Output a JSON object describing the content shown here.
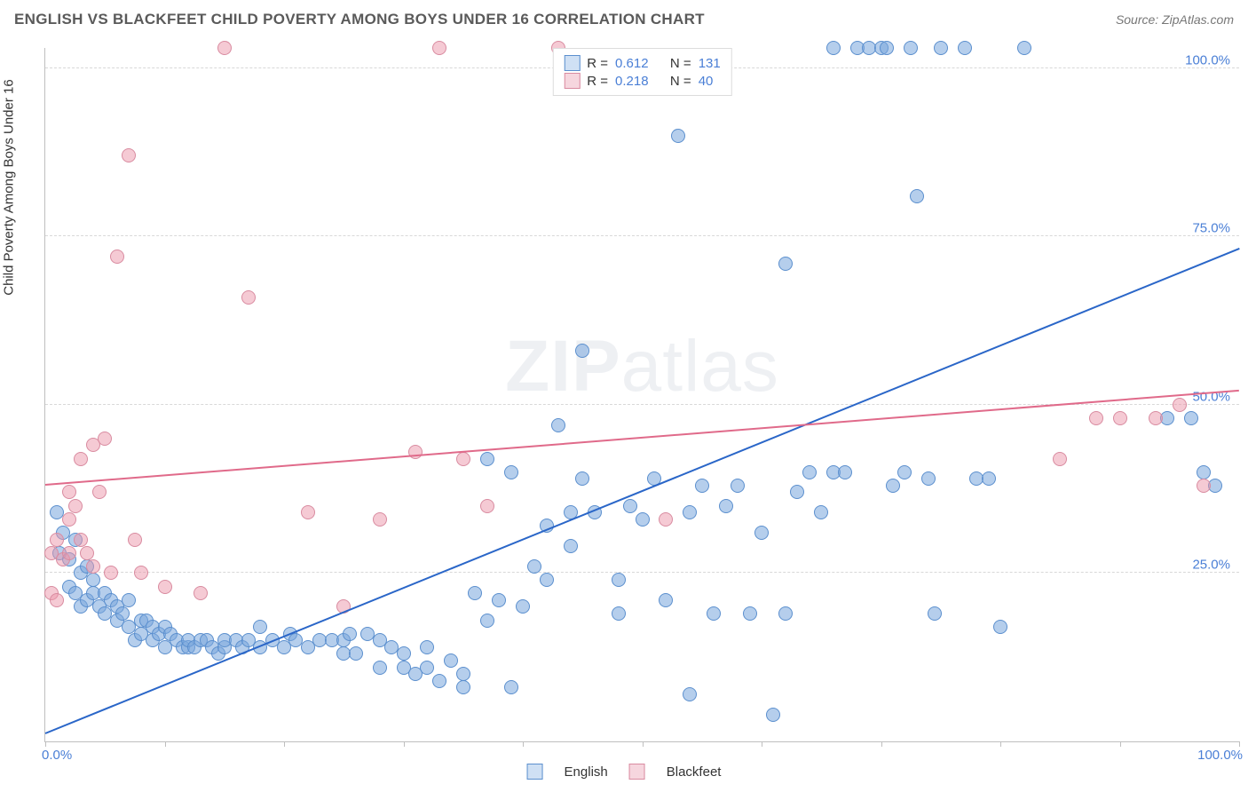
{
  "header": {
    "title": "ENGLISH VS BLACKFEET CHILD POVERTY AMONG BOYS UNDER 16 CORRELATION CHART",
    "source_prefix": "Source: ",
    "source_name": "ZipAtlas.com"
  },
  "watermark": {
    "part1": "ZIP",
    "part2": "atlas"
  },
  "chart": {
    "type": "scatter",
    "ylabel": "Child Poverty Among Boys Under 16",
    "xlim": [
      0,
      100
    ],
    "ylim": [
      0,
      103
    ],
    "xtick_positions": [
      0,
      10,
      20,
      30,
      40,
      50,
      60,
      70,
      80,
      90,
      100
    ],
    "x_axis_labels": {
      "left": "0.0%",
      "right": "100.0%"
    },
    "y_axis_ticks": [
      {
        "value": 25,
        "label": "25.0%"
      },
      {
        "value": 50,
        "label": "50.0%"
      },
      {
        "value": 75,
        "label": "75.0%"
      },
      {
        "value": 100,
        "label": "100.0%"
      }
    ],
    "background_color": "#ffffff",
    "grid_color": "#d8d8d8",
    "axis_line_color": "#bfbfbf",
    "tick_label_color": "#4a7fd6",
    "label_fontsize": 15,
    "point_radius": 8,
    "point_opacity": 0.6,
    "series": [
      {
        "name": "English",
        "color_fill": "rgba(120,165,220,0.55)",
        "color_stroke": "#5b8fce",
        "swatch_fill": "#cfe0f4",
        "swatch_border": "#5b8fce",
        "stats": {
          "R": "0.612",
          "N": "131"
        },
        "trendline": {
          "x1": 0,
          "y1": 1,
          "x2": 100,
          "y2": 73,
          "color": "#2a66c8",
          "width": 2
        },
        "points": [
          [
            1,
            34
          ],
          [
            1.2,
            28
          ],
          [
            1.5,
            31
          ],
          [
            2,
            23
          ],
          [
            2,
            27
          ],
          [
            2.5,
            30
          ],
          [
            2.5,
            22
          ],
          [
            3,
            25
          ],
          [
            3,
            20
          ],
          [
            3.5,
            21
          ],
          [
            3.5,
            26
          ],
          [
            4,
            22
          ],
          [
            4,
            24
          ],
          [
            4.5,
            20
          ],
          [
            5,
            22
          ],
          [
            5,
            19
          ],
          [
            5.5,
            21
          ],
          [
            6,
            18
          ],
          [
            6,
            20
          ],
          [
            6.5,
            19
          ],
          [
            7,
            17
          ],
          [
            7,
            21
          ],
          [
            7.5,
            15
          ],
          [
            8,
            18
          ],
          [
            8,
            16
          ],
          [
            8.5,
            18
          ],
          [
            9,
            15
          ],
          [
            9,
            17
          ],
          [
            9.5,
            16
          ],
          [
            10,
            14
          ],
          [
            10,
            17
          ],
          [
            10.5,
            16
          ],
          [
            11,
            15
          ],
          [
            11.5,
            14
          ],
          [
            12,
            14
          ],
          [
            12,
            15
          ],
          [
            12.5,
            14
          ],
          [
            13,
            15
          ],
          [
            13.5,
            15
          ],
          [
            14,
            14
          ],
          [
            14.5,
            13
          ],
          [
            15,
            14
          ],
          [
            15,
            15
          ],
          [
            16,
            15
          ],
          [
            16.5,
            14
          ],
          [
            17,
            15
          ],
          [
            18,
            17
          ],
          [
            18,
            14
          ],
          [
            19,
            15
          ],
          [
            20,
            14
          ],
          [
            20.5,
            16
          ],
          [
            21,
            15
          ],
          [
            22,
            14
          ],
          [
            23,
            15
          ],
          [
            24,
            15
          ],
          [
            25,
            15
          ],
          [
            25,
            13
          ],
          [
            25.5,
            16
          ],
          [
            26,
            13
          ],
          [
            27,
            16
          ],
          [
            28,
            11
          ],
          [
            28,
            15
          ],
          [
            29,
            14
          ],
          [
            30,
            13
          ],
          [
            30,
            11
          ],
          [
            31,
            10
          ],
          [
            32,
            11
          ],
          [
            32,
            14
          ],
          [
            33,
            9
          ],
          [
            34,
            12
          ],
          [
            35,
            10
          ],
          [
            35,
            8
          ],
          [
            36,
            22
          ],
          [
            37,
            42
          ],
          [
            37,
            18
          ],
          [
            38,
            21
          ],
          [
            39,
            8
          ],
          [
            39,
            40
          ],
          [
            40,
            20
          ],
          [
            41,
            26
          ],
          [
            42,
            24
          ],
          [
            42,
            32
          ],
          [
            43,
            47
          ],
          [
            44,
            34
          ],
          [
            44,
            29
          ],
          [
            45,
            39
          ],
          [
            45,
            58
          ],
          [
            46,
            34
          ],
          [
            48,
            24
          ],
          [
            48,
            19
          ],
          [
            49,
            35
          ],
          [
            50,
            33
          ],
          [
            51,
            39
          ],
          [
            52,
            21
          ],
          [
            53,
            90
          ],
          [
            54,
            34
          ],
          [
            54,
            7
          ],
          [
            55,
            38
          ],
          [
            56,
            19
          ],
          [
            57,
            35
          ],
          [
            58,
            38
          ],
          [
            59,
            19
          ],
          [
            60,
            31
          ],
          [
            61,
            4
          ],
          [
            62,
            19
          ],
          [
            62,
            71
          ],
          [
            63,
            37
          ],
          [
            64,
            40
          ],
          [
            65,
            34
          ],
          [
            66,
            40
          ],
          [
            66,
            103
          ],
          [
            67,
            40
          ],
          [
            68,
            103
          ],
          [
            69,
            103
          ],
          [
            70,
            103
          ],
          [
            70.5,
            103
          ],
          [
            71,
            38
          ],
          [
            72,
            40
          ],
          [
            72.5,
            103
          ],
          [
            73,
            81
          ],
          [
            74,
            39
          ],
          [
            74.5,
            19
          ],
          [
            75,
            103
          ],
          [
            77,
            103
          ],
          [
            78,
            39
          ],
          [
            79,
            39
          ],
          [
            80,
            17
          ],
          [
            82,
            103
          ],
          [
            94,
            48
          ],
          [
            96,
            48
          ],
          [
            97,
            40
          ],
          [
            98,
            38
          ]
        ]
      },
      {
        "name": "Blackfeet",
        "color_fill": "rgba(235,150,170,0.5)",
        "color_stroke": "#d98ba0",
        "swatch_fill": "#f6d6de",
        "swatch_border": "#d98ba0",
        "stats": {
          "R": "0.218",
          "N": "40"
        },
        "trendline": {
          "x1": 0,
          "y1": 38,
          "x2": 100,
          "y2": 52,
          "color": "#e06a8a",
          "width": 2
        },
        "points": [
          [
            0.5,
            22
          ],
          [
            0.5,
            28
          ],
          [
            1,
            21
          ],
          [
            1,
            30
          ],
          [
            1.5,
            27
          ],
          [
            2,
            33
          ],
          [
            2,
            37
          ],
          [
            2,
            28
          ],
          [
            2.5,
            35
          ],
          [
            3,
            42
          ],
          [
            3,
            30
          ],
          [
            3.5,
            28
          ],
          [
            4,
            44
          ],
          [
            4,
            26
          ],
          [
            4.5,
            37
          ],
          [
            5,
            45
          ],
          [
            5.5,
            25
          ],
          [
            6,
            72
          ],
          [
            7,
            87
          ],
          [
            7.5,
            30
          ],
          [
            8,
            25
          ],
          [
            10,
            23
          ],
          [
            13,
            22
          ],
          [
            15,
            103
          ],
          [
            17,
            66
          ],
          [
            22,
            34
          ],
          [
            25,
            20
          ],
          [
            28,
            33
          ],
          [
            31,
            43
          ],
          [
            33,
            103
          ],
          [
            35,
            42
          ],
          [
            37,
            35
          ],
          [
            43,
            103
          ],
          [
            52,
            33
          ],
          [
            85,
            42
          ],
          [
            88,
            48
          ],
          [
            90,
            48
          ],
          [
            93,
            48
          ],
          [
            95,
            50
          ],
          [
            97,
            38
          ]
        ]
      }
    ]
  },
  "legend_top_labels": {
    "R": "R =",
    "N": "N ="
  },
  "legend_bottom": [
    {
      "label": "English",
      "swatch_fill": "#cfe0f4",
      "swatch_border": "#5b8fce"
    },
    {
      "label": "Blackfeet",
      "swatch_fill": "#f6d6de",
      "swatch_border": "#d98ba0"
    }
  ]
}
